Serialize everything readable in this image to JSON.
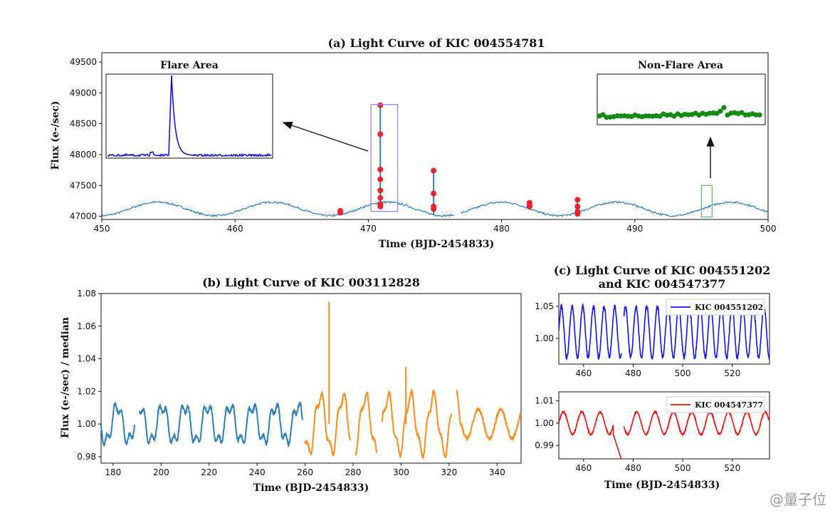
{
  "chart_data": [
    {
      "id": "a",
      "type": "line",
      "title": "(a) Light Curve of KIC 004554781",
      "xlabel": "Time (BJD-2454833)",
      "ylabel": "Flux (e-/sec)",
      "xlim": [
        450,
        500
      ],
      "ylim": [
        46950,
        49650
      ],
      "xticks": [
        "450",
        "460",
        "470",
        "480",
        "490",
        "500"
      ],
      "yticks": [
        "47000",
        "47500",
        "48000",
        "48500",
        "49000",
        "49500"
      ],
      "color": "#2f7fba",
      "marker_color": "#e8242c",
      "baseline": {
        "mean": 47120,
        "amp": 110,
        "period": 8.6,
        "phase": 454.2
      },
      "gaps": [
        [
          476.5,
          476.9
        ]
      ],
      "flare_points": [
        {
          "x": 467.9,
          "y": [
            47060,
            47090
          ]
        },
        {
          "x": 470.9,
          "y": [
            48800,
            48330,
            47760,
            47600,
            47420,
            47300,
            47200,
            47160
          ]
        },
        {
          "x": 474.9,
          "y": [
            47740,
            47370,
            47160,
            47120
          ]
        },
        {
          "x": 482.1,
          "y": [
            47220,
            47180,
            47160
          ]
        },
        {
          "x": 485.7,
          "y": [
            47270,
            47160,
            47080,
            47040
          ]
        }
      ],
      "flare_box_x": [
        470.2,
        472.2
      ],
      "flare_box_y": [
        47080,
        48810
      ],
      "nonflare_box_x": [
        495.0,
        495.8
      ],
      "nonflare_box_y": [
        46990,
        47500
      ],
      "insets": [
        {
          "title": "Flare Area",
          "color": "#1414e0",
          "kind": "flare"
        },
        {
          "title": "Non-Flare Area",
          "color": "#138a13",
          "kind": "nonflare"
        }
      ]
    },
    {
      "id": "b",
      "type": "line",
      "title": "(b) Light Curve of KIC 003112828",
      "xlabel": "Time (BJD-2454833)",
      "ylabel": "Flux (e-/sec) / median",
      "xlim": [
        175,
        350
      ],
      "ylim": [
        0.976,
        1.08
      ],
      "xticks": [
        "180",
        "200",
        "220",
        "240",
        "260",
        "280",
        "300",
        "320",
        "340"
      ],
      "yticks": [
        "0.98",
        "1.00",
        "1.02",
        "1.04",
        "1.06",
        "1.08"
      ],
      "series": [
        {
          "color": "#2f7fba",
          "range": [
            175,
            259
          ]
        },
        {
          "color": "#ff8c1a",
          "range": [
            260,
            350
          ]
        }
      ],
      "spikes": [
        {
          "x": 270,
          "y": 1.075
        },
        {
          "x": 302,
          "y": 1.035
        }
      ]
    },
    {
      "id": "c",
      "type": "line",
      "title": "(c) Light Curve of KIC 004551202\nand KIC 004547377",
      "title_lines": [
        "(c) Light Curve of KIC 004551202",
        "and KIC 004547377"
      ],
      "xlabel": "Time (BJD-2454833)",
      "panels": [
        {
          "name": "KIC 004551202",
          "color": "#1010f0",
          "xlim": [
            450,
            535
          ],
          "ylim": [
            0.96,
            1.07
          ],
          "xticks": [
            "460",
            "480",
            "500",
            "520"
          ],
          "yticks": [
            "1.00",
            "1.05"
          ],
          "amp": 0.04,
          "period": 4.3,
          "mean": 1.01
        },
        {
          "name": "KIC 004547377",
          "color": "#ee1111",
          "xlim": [
            450,
            535
          ],
          "ylim": [
            0.984,
            1.014
          ],
          "xticks": [
            "460",
            "480",
            "500",
            "520"
          ],
          "yticks": [
            "0.99",
            "1.00",
            "1.01"
          ],
          "amp": 0.005,
          "period": 7.4,
          "mean": 1.0
        }
      ]
    }
  ],
  "watermark": "@量子位"
}
